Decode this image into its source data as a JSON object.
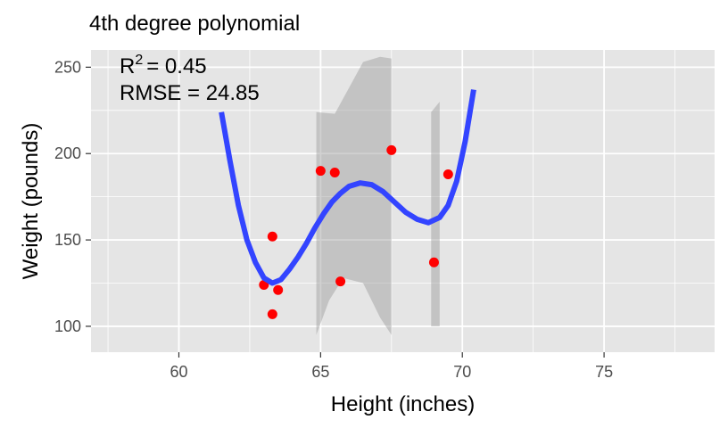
{
  "chart_data": {
    "type": "scatter",
    "title": "4th degree polynomial",
    "xlabel": "Height (inches)",
    "ylabel": "Weight (pounds)",
    "xlim": [
      56.9,
      78.9
    ],
    "ylim": [
      85,
      260
    ],
    "x_ticks": [
      60,
      65,
      70,
      75
    ],
    "y_ticks": [
      100,
      150,
      200,
      250
    ],
    "grid": true,
    "annotations": {
      "r2_prefix": "R",
      "r2_exp": "2",
      "r2_text": "=  0.45",
      "rmse_text": "RMSE =  24.85"
    },
    "points": [
      {
        "x": 63.0,
        "y": 124
      },
      {
        "x": 63.3,
        "y": 152
      },
      {
        "x": 63.3,
        "y": 107
      },
      {
        "x": 63.5,
        "y": 121
      },
      {
        "x": 65.0,
        "y": 190
      },
      {
        "x": 65.5,
        "y": 189
      },
      {
        "x": 65.7,
        "y": 126
      },
      {
        "x": 67.5,
        "y": 202
      },
      {
        "x": 69.0,
        "y": 137
      },
      {
        "x": 69.5,
        "y": 188
      }
    ],
    "fit_curve": [
      [
        61.5,
        224
      ],
      [
        61.8,
        196
      ],
      [
        62.1,
        170
      ],
      [
        62.4,
        150
      ],
      [
        62.7,
        137
      ],
      [
        63.0,
        128
      ],
      [
        63.3,
        125
      ],
      [
        63.6,
        127
      ],
      [
        63.9,
        133
      ],
      [
        64.2,
        140
      ],
      [
        64.5,
        148
      ],
      [
        64.8,
        157
      ],
      [
        65.1,
        165
      ],
      [
        65.4,
        172
      ],
      [
        65.7,
        177
      ],
      [
        66.0,
        181
      ],
      [
        66.4,
        183
      ],
      [
        66.8,
        182
      ],
      [
        67.2,
        178
      ],
      [
        67.6,
        172
      ],
      [
        68.0,
        166
      ],
      [
        68.4,
        162
      ],
      [
        68.8,
        160
      ],
      [
        69.2,
        163
      ],
      [
        69.5,
        170
      ],
      [
        69.8,
        184
      ],
      [
        70.1,
        207
      ],
      [
        70.4,
        237
      ]
    ],
    "confidence_band": [
      {
        "x_range": [
          64.85,
          67.5
        ],
        "upper": [
          [
            64.85,
            224
          ],
          [
            65.5,
            223
          ],
          [
            66.0,
            238
          ],
          [
            66.5,
            253
          ],
          [
            67.1,
            256
          ],
          [
            67.5,
            255
          ]
        ],
        "lower": [
          [
            64.85,
            95
          ],
          [
            65.3,
            115
          ],
          [
            65.8,
            128
          ],
          [
            66.5,
            125
          ],
          [
            67.1,
            105
          ],
          [
            67.5,
            95
          ]
        ]
      },
      {
        "x_range": [
          68.9,
          69.2
        ],
        "upper": [
          [
            68.9,
            224
          ],
          [
            69.2,
            230
          ]
        ],
        "lower": [
          [
            68.9,
            100
          ],
          [
            69.2,
            100
          ]
        ]
      }
    ],
    "colors": {
      "panel": "#e5e5e5",
      "grid": "#ffffff",
      "points": "#ff0000",
      "fit_line": "#3344ff",
      "band": "#999999"
    }
  }
}
